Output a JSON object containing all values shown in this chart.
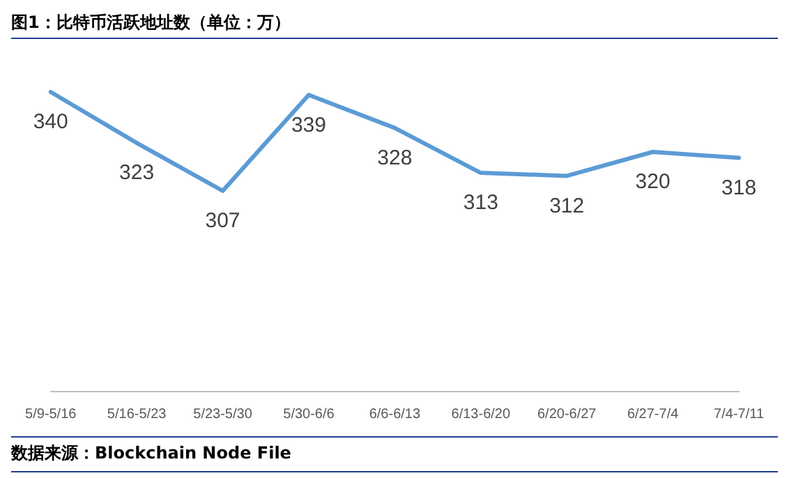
{
  "chart_data": {
    "type": "line",
    "title": "图1：比特币活跃地址数（单位：万）",
    "categories": [
      "5/9-5/16",
      "5/16-5/23",
      "5/23-5/30",
      "5/30-6/6",
      "6/6-6/13",
      "6/13-6/20",
      "6/20-6/27",
      "6/27-7/4",
      "7/4-7/11"
    ],
    "series": [
      {
        "color": "#5b9bd5",
        "values": [
          340,
          323,
          307,
          339,
          328,
          313,
          312,
          320,
          318
        ]
      }
    ],
    "data_labels": true,
    "marker": "none",
    "line_style": "solid",
    "grid": false,
    "legend": false,
    "tick_labels": "x",
    "annotations": [
      "数据来源：Blockchain Node File"
    ]
  }
}
